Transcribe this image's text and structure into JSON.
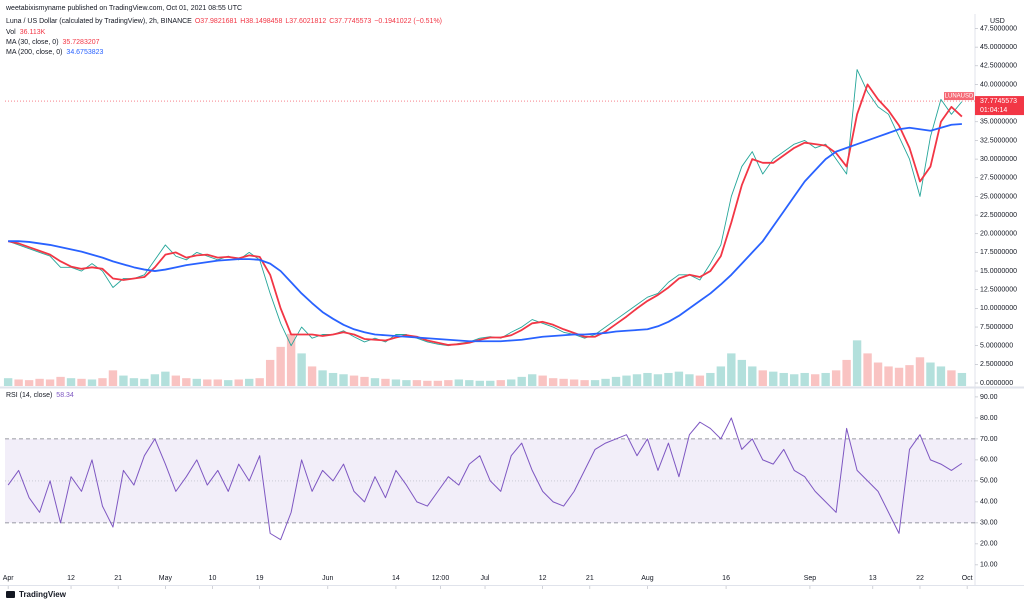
{
  "header": {
    "published": "weetabixismyname published on TradingView.com, Oct 01, 2021 08:55 UTC",
    "brand": "TradingView"
  },
  "chart_data": [
    {
      "type": "line",
      "ohlc": [
        "O37.9821681",
        "H38.1498458",
        "L37.6021812",
        "C37.7745573",
        "−0.1941022 (−0.51%)"
      ],
      "y_axis_label": "USD",
      "x": [
        0,
        2,
        4,
        6,
        8,
        10,
        12,
        14,
        16,
        18,
        20,
        22,
        24,
        26,
        28,
        30,
        32,
        34,
        36,
        38,
        40,
        42,
        44,
        46,
        48,
        50,
        52,
        54,
        56,
        58,
        60,
        62,
        64,
        66,
        68,
        70,
        72,
        74,
        76,
        78,
        80,
        82,
        84,
        86,
        88,
        90,
        92,
        94,
        96,
        98,
        100,
        102,
        104,
        106,
        108,
        110,
        112,
        114,
        116,
        118,
        120,
        122,
        124,
        126,
        128,
        130,
        132,
        134,
        136,
        138,
        140,
        142,
        144,
        146,
        148,
        150,
        152,
        154,
        156,
        158,
        160,
        162,
        164,
        166,
        168,
        170,
        172,
        174,
        176,
        178,
        180,
        182
      ],
      "xlim": [
        -0.6,
        184.5
      ],
      "xticks": [
        {
          "value": 0,
          "label": "Apr"
        },
        12,
        21,
        {
          "value": 30,
          "label": "May"
        },
        {
          "value": 39,
          "label": "10"
        },
        {
          "value": 48,
          "label": "19"
        },
        {
          "value": 61,
          "label": "Jun"
        },
        {
          "value": 74,
          "label": "14"
        },
        {
          "value": 82.5,
          "label": "12:00"
        },
        {
          "value": 91,
          "label": "Jul"
        },
        {
          "value": 102,
          "label": "12"
        },
        {
          "value": 111,
          "label": "21"
        },
        {
          "value": 122,
          "label": "Aug"
        },
        {
          "value": 137,
          "label": "16"
        },
        {
          "value": 153,
          "label": "Sep"
        },
        {
          "value": 165,
          "label": "13"
        },
        {
          "value": 174,
          "label": "22"
        },
        {
          "value": 183,
          "label": "Oct"
        }
      ],
      "ylim": [
        -0.4,
        48.1
      ],
      "yticks": [
        {
          "value": 0,
          "label": "0.0000000"
        },
        {
          "value": 2.5,
          "label": "2.5000000"
        },
        {
          "value": 5,
          "label": "5.0000000"
        },
        {
          "value": 7.5,
          "label": "7.5000000"
        },
        {
          "value": 10,
          "label": "10.0000000"
        },
        {
          "value": 12.5,
          "label": "12.5000000"
        },
        {
          "value": 15,
          "label": "15.0000000"
        },
        {
          "value": 17.5,
          "label": "17.5000000"
        },
        {
          "value": 20,
          "label": "20.0000000"
        },
        {
          "value": 22.5,
          "label": "22.5000000"
        },
        {
          "value": 25,
          "label": "25.0000000"
        },
        {
          "value": 27.5,
          "label": "27.5000000"
        },
        {
          "value": 30,
          "label": "30.0000000"
        },
        {
          "value": 32.5,
          "label": "32.5000000"
        },
        {
          "value": 35,
          "label": "35.0000000"
        },
        {
          "value": 37.5,
          "label": "37.5000000"
        },
        {
          "value": 40,
          "label": "40.0000000"
        },
        {
          "value": 42.5,
          "label": "42.5000000"
        },
        {
          "value": 45,
          "label": "45.0000000"
        },
        {
          "value": 47.5,
          "label": "47.5000000"
        }
      ],
      "grid": false,
      "series": [
        {
          "name": "Luna / US Dollar (calculated by TradingView), 2h, BINANCE",
          "color": "#26a69a",
          "values": [
            19,
            18.5,
            18,
            17.5,
            17,
            15.5,
            15.5,
            15,
            16,
            15,
            12.8,
            14,
            14,
            14.5,
            16.5,
            18.5,
            17,
            16.5,
            17.5,
            17,
            16.5,
            17,
            16.5,
            17.5,
            16.5,
            12,
            8,
            5,
            7.5,
            6,
            6.5,
            6.5,
            7,
            6.2,
            5.5,
            6,
            5.5,
            6.5,
            6.5,
            6,
            5.5,
            5.2,
            5,
            5.3,
            5.5,
            6,
            6.2,
            6,
            6.8,
            7.5,
            8.5,
            8,
            7.5,
            6.8,
            6.5,
            6,
            6.5,
            7.5,
            8.5,
            9.5,
            10.5,
            11.5,
            12,
            13.5,
            14.5,
            14.5,
            13.8,
            16,
            18.5,
            25,
            29,
            31,
            28,
            30,
            31,
            32,
            32.5,
            31.5,
            32,
            30,
            28,
            42,
            39,
            37,
            36,
            33,
            30,
            25,
            33,
            38,
            36,
            37.7
          ]
        },
        {
          "name": "MA (30, close, 0)",
          "legend_value": "35.7283207",
          "color": "#f23645",
          "values": [
            19,
            18.7,
            18.2,
            17.7,
            17.2,
            16.3,
            15.6,
            15.3,
            15.5,
            15.3,
            14,
            13.8,
            14,
            14.2,
            15.5,
            17.2,
            17.5,
            16.8,
            17.1,
            17.2,
            16.8,
            16.9,
            16.7,
            17.1,
            16.9,
            14.5,
            10,
            6.5,
            6.5,
            6.5,
            6.3,
            6.5,
            6.8,
            6.5,
            5.9,
            5.8,
            5.7,
            6.1,
            6.4,
            6.2,
            5.7,
            5.4,
            5.1,
            5.2,
            5.4,
            5.8,
            6.1,
            6.1,
            6.4,
            7.1,
            8,
            8.2,
            7.8,
            7.2,
            6.7,
            6.2,
            6.2,
            6.9,
            7.9,
            8.9,
            10,
            11,
            11.8,
            12.8,
            14,
            14.5,
            14.2,
            15,
            17,
            21.5,
            26.5,
            30,
            29.5,
            29.5,
            30.5,
            31.5,
            32.2,
            32,
            31.8,
            30.8,
            29,
            36,
            40,
            38,
            36.5,
            34.5,
            31.5,
            27,
            29,
            35,
            37,
            35.7
          ]
        },
        {
          "name": "MA (200, close, 0)",
          "legend_value": "34.6753823",
          "color": "#2962ff",
          "values": [
            19,
            19,
            18.9,
            18.7,
            18.5,
            18.2,
            17.9,
            17.6,
            17.2,
            16.8,
            16.3,
            15.9,
            15.5,
            15.2,
            15,
            15.2,
            15.5,
            15.8,
            16,
            16.2,
            16.4,
            16.5,
            16.6,
            16.6,
            16.5,
            16,
            15,
            13.5,
            12,
            10.7,
            9.5,
            8.6,
            7.8,
            7.2,
            6.8,
            6.5,
            6.4,
            6.3,
            6.2,
            6.1,
            6,
            5.9,
            5.8,
            5.7,
            5.6,
            5.6,
            5.6,
            5.6,
            5.7,
            5.8,
            6,
            6.2,
            6.3,
            6.4,
            6.5,
            6.5,
            6.6,
            6.7,
            6.9,
            7,
            7.1,
            7.2,
            7.6,
            8.2,
            9,
            10,
            11,
            12,
            13.2,
            14.5,
            16,
            17.5,
            19,
            21,
            23,
            25,
            27,
            28.5,
            30,
            31,
            31.5,
            32,
            32.5,
            33,
            33.5,
            34,
            34.2,
            34,
            33.8,
            34.2,
            34.6,
            34.7
          ]
        }
      ],
      "volume": {
        "name": "Vol",
        "legend_value": "36.113K",
        "up_color": "#26a69a",
        "down_color": "#ef5350",
        "values": [
          60,
          50,
          45,
          55,
          50,
          70,
          60,
          55,
          50,
          60,
          120,
          80,
          60,
          55,
          90,
          110,
          80,
          60,
          55,
          50,
          50,
          45,
          50,
          55,
          60,
          200,
          300,
          400,
          250,
          150,
          120,
          100,
          90,
          80,
          70,
          60,
          55,
          50,
          45,
          45,
          40,
          40,
          45,
          50,
          45,
          40,
          40,
          45,
          50,
          70,
          90,
          80,
          60,
          55,
          50,
          45,
          45,
          55,
          70,
          80,
          90,
          100,
          90,
          100,
          110,
          90,
          80,
          100,
          150,
          250,
          200,
          150,
          120,
          110,
          100,
          90,
          100,
          90,
          100,
          120,
          200,
          350,
          250,
          180,
          150,
          140,
          160,
          220,
          180,
          150,
          120,
          100
        ]
      },
      "last_price": {
        "value": 37.7745573,
        "color": "#f23645",
        "symbol": "LUNAUSD",
        "label": "37.7745573",
        "countdown": "01:04:14"
      }
    },
    {
      "type": "line",
      "title": "RSI (14, close)",
      "legend_value": "58.34",
      "color": "#7e57c2",
      "x": [
        0,
        2,
        4,
        6,
        8,
        10,
        12,
        14,
        16,
        18,
        20,
        22,
        24,
        26,
        28,
        30,
        32,
        34,
        36,
        38,
        40,
        42,
        44,
        46,
        48,
        50,
        52,
        54,
        56,
        58,
        60,
        62,
        64,
        66,
        68,
        70,
        72,
        74,
        76,
        78,
        80,
        82,
        84,
        86,
        88,
        90,
        92,
        94,
        96,
        98,
        100,
        102,
        104,
        106,
        108,
        110,
        112,
        114,
        116,
        118,
        120,
        122,
        124,
        126,
        128,
        130,
        132,
        134,
        136,
        138,
        140,
        142,
        144,
        146,
        148,
        150,
        152,
        154,
        156,
        158,
        160,
        162,
        164,
        166,
        168,
        170,
        172,
        174,
        176,
        178,
        180,
        182
      ],
      "xlim": [
        -0.6,
        184.5
      ],
      "ylim": [
        6.6,
        93.3
      ],
      "yticks": [
        {
          "value": 10,
          "label": "10.00"
        },
        {
          "value": 20,
          "label": "20.00"
        },
        {
          "value": 30,
          "label": "30.00"
        },
        {
          "value": 40,
          "label": "40.00"
        },
        {
          "value": 50,
          "label": "50.00"
        },
        {
          "value": 60,
          "label": "60.00"
        },
        {
          "value": 70,
          "label": "70.00"
        },
        {
          "value": 80,
          "label": "80.00"
        },
        {
          "value": 90,
          "label": "90.00"
        }
      ],
      "bands": {
        "lower": 30,
        "middle": 50,
        "upper": 70,
        "fill": "#7e57c2"
      },
      "values": [
        48,
        55,
        42,
        35,
        50,
        30,
        52,
        45,
        60,
        38,
        28,
        55,
        48,
        62,
        70,
        58,
        45,
        52,
        60,
        48,
        55,
        45,
        58,
        50,
        62,
        25,
        22,
        35,
        60,
        45,
        55,
        50,
        58,
        45,
        40,
        52,
        42,
        55,
        48,
        40,
        38,
        45,
        52,
        48,
        58,
        62,
        50,
        45,
        62,
        68,
        55,
        45,
        40,
        38,
        45,
        55,
        65,
        68,
        70,
        72,
        62,
        70,
        55,
        68,
        52,
        72,
        78,
        75,
        70,
        80,
        65,
        70,
        60,
        58,
        65,
        55,
        52,
        45,
        40,
        35,
        75,
        55,
        50,
        45,
        35,
        25,
        65,
        72,
        60,
        58,
        55,
        58.34
      ]
    }
  ]
}
